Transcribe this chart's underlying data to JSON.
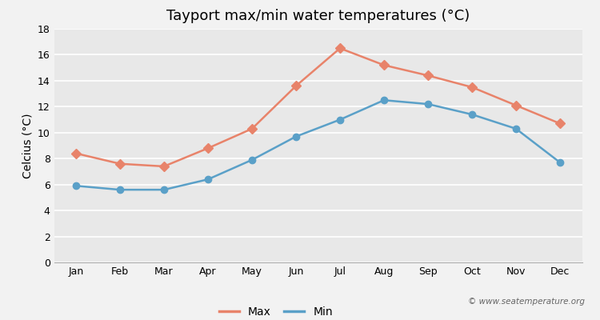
{
  "title": "Tayport max/min water temperatures (°C)",
  "xlabel": "",
  "ylabel": "Celcius (°C)",
  "months": [
    "Jan",
    "Feb",
    "Mar",
    "Apr",
    "May",
    "Jun",
    "Jul",
    "Aug",
    "Sep",
    "Oct",
    "Nov",
    "Dec"
  ],
  "max_temps": [
    8.4,
    7.6,
    7.4,
    8.8,
    10.3,
    13.6,
    16.5,
    15.2,
    14.4,
    13.5,
    12.1,
    10.7
  ],
  "min_temps": [
    5.9,
    5.6,
    5.6,
    6.4,
    7.9,
    9.7,
    11.0,
    12.5,
    12.2,
    11.4,
    10.3,
    7.7
  ],
  "max_color": "#e8836a",
  "min_color": "#5aa0c8",
  "max_marker": "D",
  "min_marker": "o",
  "marker_size": 6,
  "line_width": 1.8,
  "ylim": [
    0,
    18
  ],
  "yticks": [
    0,
    2,
    4,
    6,
    8,
    10,
    12,
    14,
    16,
    18
  ],
  "background_color": "#f2f2f2",
  "plot_bg_color": "#e8e8e8",
  "grid_color": "#ffffff",
  "title_fontsize": 13,
  "label_fontsize": 10,
  "tick_fontsize": 9,
  "legend_fontsize": 10,
  "watermark": "© www.seatemperature.org"
}
